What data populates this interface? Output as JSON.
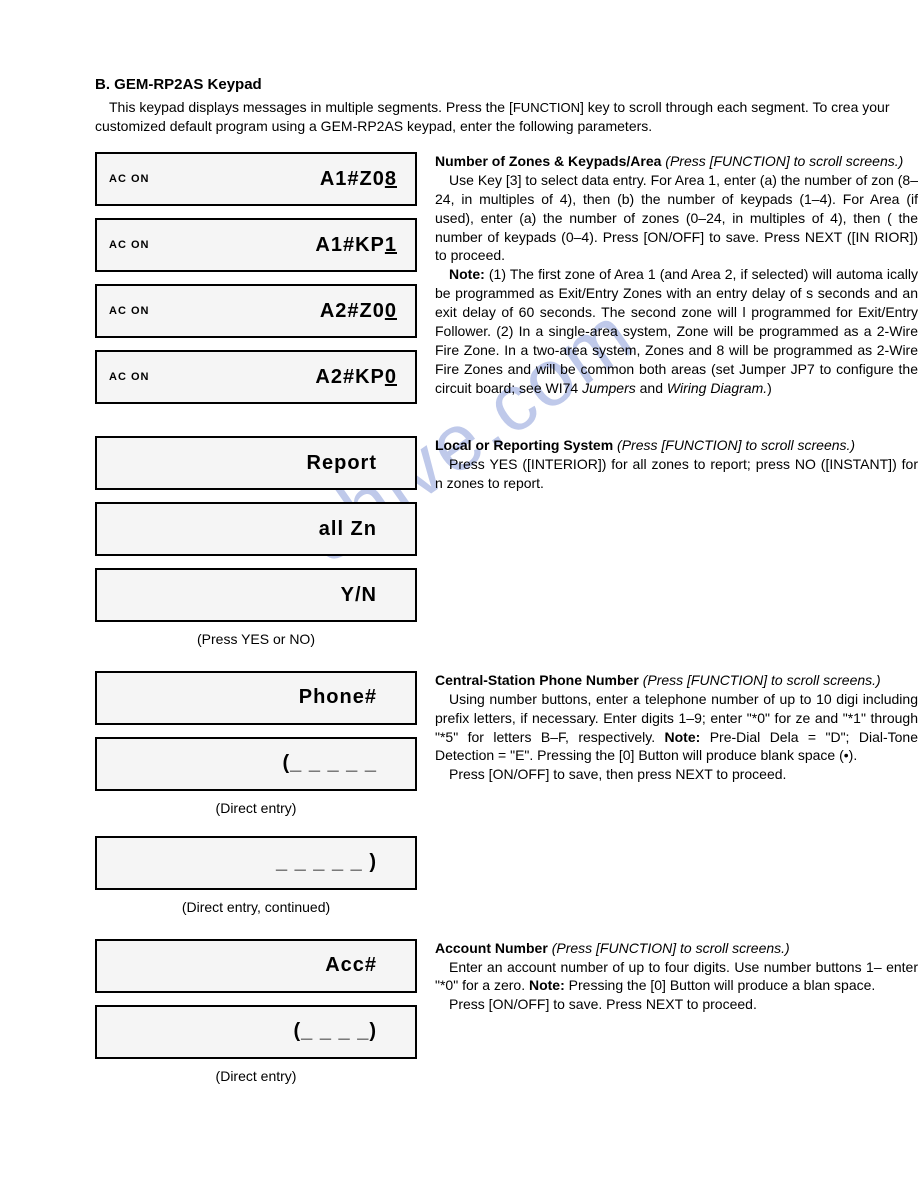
{
  "watermark": "shive.com",
  "header": {
    "title": "B. GEM-RP2AS Keypad",
    "intro_pre": "This keypad displays messages in multiple segments. Press the [",
    "intro_func": "FUNCTION",
    "intro_post": "] key to scroll through each segment. To crea your customized default program using a GEM-RP2AS keypad, enter the following parameters."
  },
  "keypad": {
    "ac_on": "AC ON",
    "boxes": {
      "b1_right": "A1#Z0",
      "b1_suffix": "8",
      "b2_right": "A1#KP",
      "b2_suffix": "1",
      "b3_right": "A2#Z0",
      "b3_suffix": "0",
      "b4_right": "A2#KP",
      "b4_suffix": "0",
      "b5": "Report",
      "b6": "all Zn",
      "b7": "Y/N",
      "b8": "Phone#",
      "b9": "(_ _ _ _ _",
      "b10": "_ _ _ _ _ )",
      "b11": "Acc#",
      "b12": "(_  _  _  _)"
    },
    "captions": {
      "yes_no": "(Press YES or NO)",
      "direct_entry": "(Direct entry)",
      "direct_entry_cont": "(Direct entry, continued)"
    }
  },
  "sections": {
    "zones": {
      "heading": "Number of Zones & Keypads/Area",
      "heading_note": "(Press [FUNCTION] to scroll screens.)",
      "p1": "Use Key [3] to select data entry. For Area 1, enter (a) the number of zon (8–24, in multiples of 4), then (b) the number of keypads (1–4). For Area (if used), enter (a) the number of zones (0–24, in multiples of 4), then ( the number of keypads (0–4). Press [ON/OFF] to save. Press NEXT ([IN RIOR]) to proceed.",
      "note_label": "Note:",
      "note_body": " (1) The first zone of Area 1 (and Area 2, if selected) will automa ically be programmed as Exit/Entry Zones with an entry delay of s seconds and an exit delay of 60 seconds. The second zone will l programmed for Exit/Entry Follower. (2) In a single-area system, Zone will be programmed as a 2-Wire Fire Zone. In a two-area system, Zones and 8 will be programmed as 2-Wire Fire Zones and will be common both areas (set Jumper JP7 to configure the circuit board; see WI74 ",
      "note_italic": "Jumpers",
      "note_and": " and ",
      "note_italic2": "Wiring Diagram.",
      "note_end": ")"
    },
    "local": {
      "heading": "Local or Reporting System",
      "heading_note": "(Press [FUNCTION] to scroll screens.)",
      "p1": "Press YES ([INTERIOR]) for all zones to report; press NO ([INSTANT]) for n zones to report."
    },
    "phone": {
      "heading": "Central-Station Phone Number",
      "heading_note": "(Press [FUNCTION] to scroll screens.)",
      "p1_pre": "Using number buttons, enter a telephone number of up to 10 digi including prefix letters, if necessary. Enter digits 1–9; enter \"*0\" for ze and \"*1\" through \"*5\" for letters B–F, respectively. ",
      "p1_note": "Note:",
      "p1_post": " Pre-Dial Dela = \"D\"; Dial-Tone Detection = \"E\". Pressing the [0] Button will produce blank space (•).",
      "p2": "Press [ON/OFF] to save, then press NEXT to proceed."
    },
    "account": {
      "heading": "Account Number",
      "heading_note": "(Press [FUNCTION] to scroll screens.)",
      "p1_pre": "Enter an account number of up to four digits. Use number buttons 1– enter \"*0\" for a zero. ",
      "p1_note": "Note:",
      "p1_post": " Pressing the [0] Button will produce a blan space.",
      "p2": "Press [ON/OFF] to save. Press NEXT to proceed."
    }
  }
}
